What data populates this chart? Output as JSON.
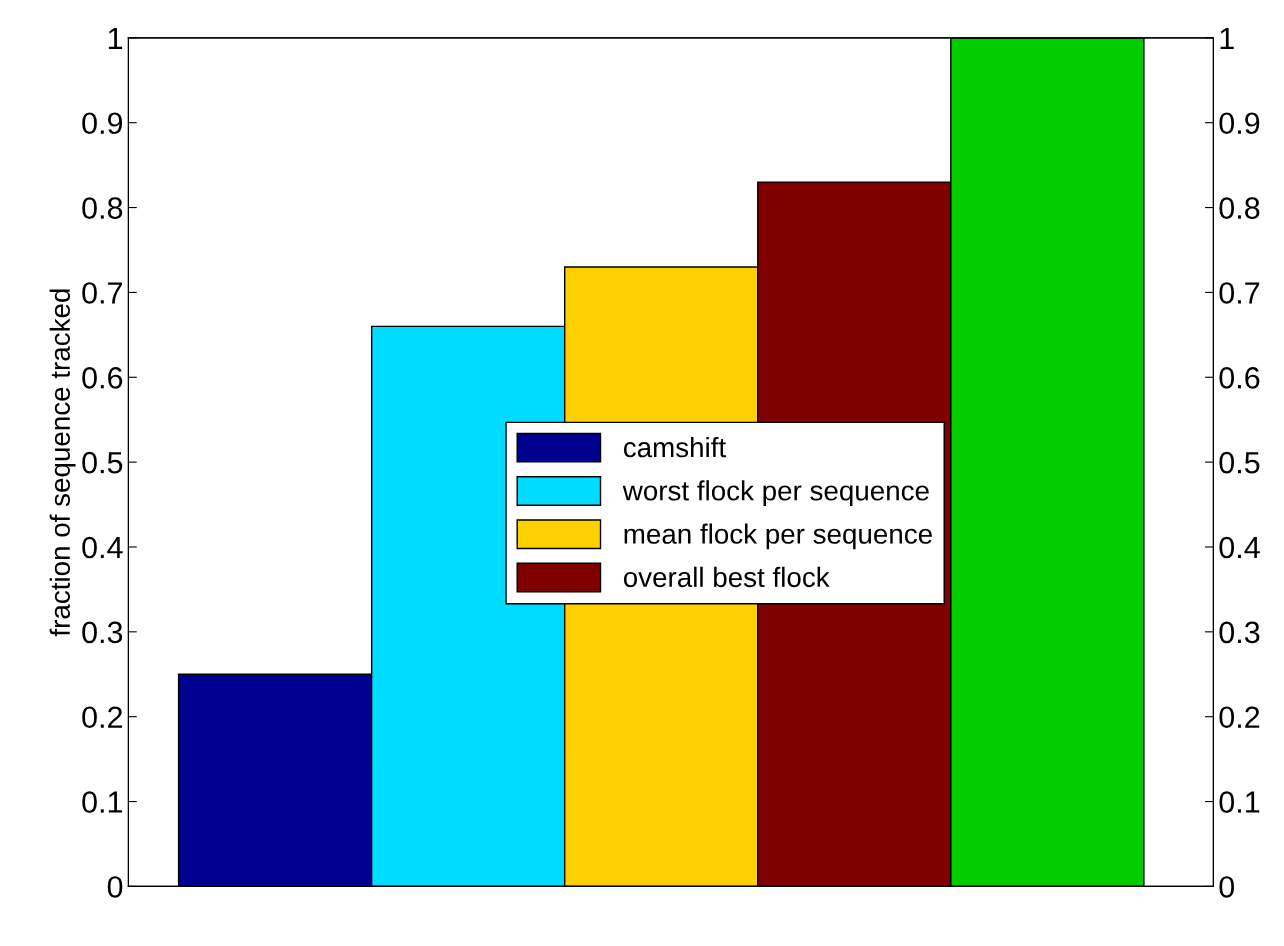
{
  "chart_data": {
    "type": "bar",
    "ylabel": "fraction of sequence tracked",
    "categories": [
      null,
      null,
      null,
      null,
      null
    ],
    "series": [
      {
        "name": "camshift",
        "color": "#000090",
        "values": [
          0.25,
          null,
          null,
          null,
          null
        ]
      },
      {
        "name": "worst flock per sequence",
        "color": "#00dcff",
        "values": [
          null,
          0.66,
          null,
          null,
          null
        ]
      },
      {
        "name": "mean flock per sequence",
        "color": "#ffd000",
        "values": [
          null,
          null,
          0.73,
          null,
          null
        ]
      },
      {
        "name": "overall best flock",
        "color": "#800000",
        "values": [
          null,
          null,
          null,
          0.83,
          null
        ]
      },
      {
        "color": "#00cc00",
        "values": [
          null,
          null,
          null,
          null,
          1.0
        ]
      }
    ],
    "ylim": [
      0,
      1
    ],
    "yticks": [
      0,
      0.1,
      0.2,
      0.3,
      0.4,
      0.5,
      0.6,
      0.7,
      0.8,
      0.9,
      1
    ],
    "y2lim": [
      0,
      1
    ],
    "y2ticks": [
      0,
      0.1,
      0.2,
      0.3,
      0.4,
      0.5,
      0.6,
      0.7,
      0.8,
      0.9,
      1
    ],
    "grid": false,
    "legend": "center"
  }
}
